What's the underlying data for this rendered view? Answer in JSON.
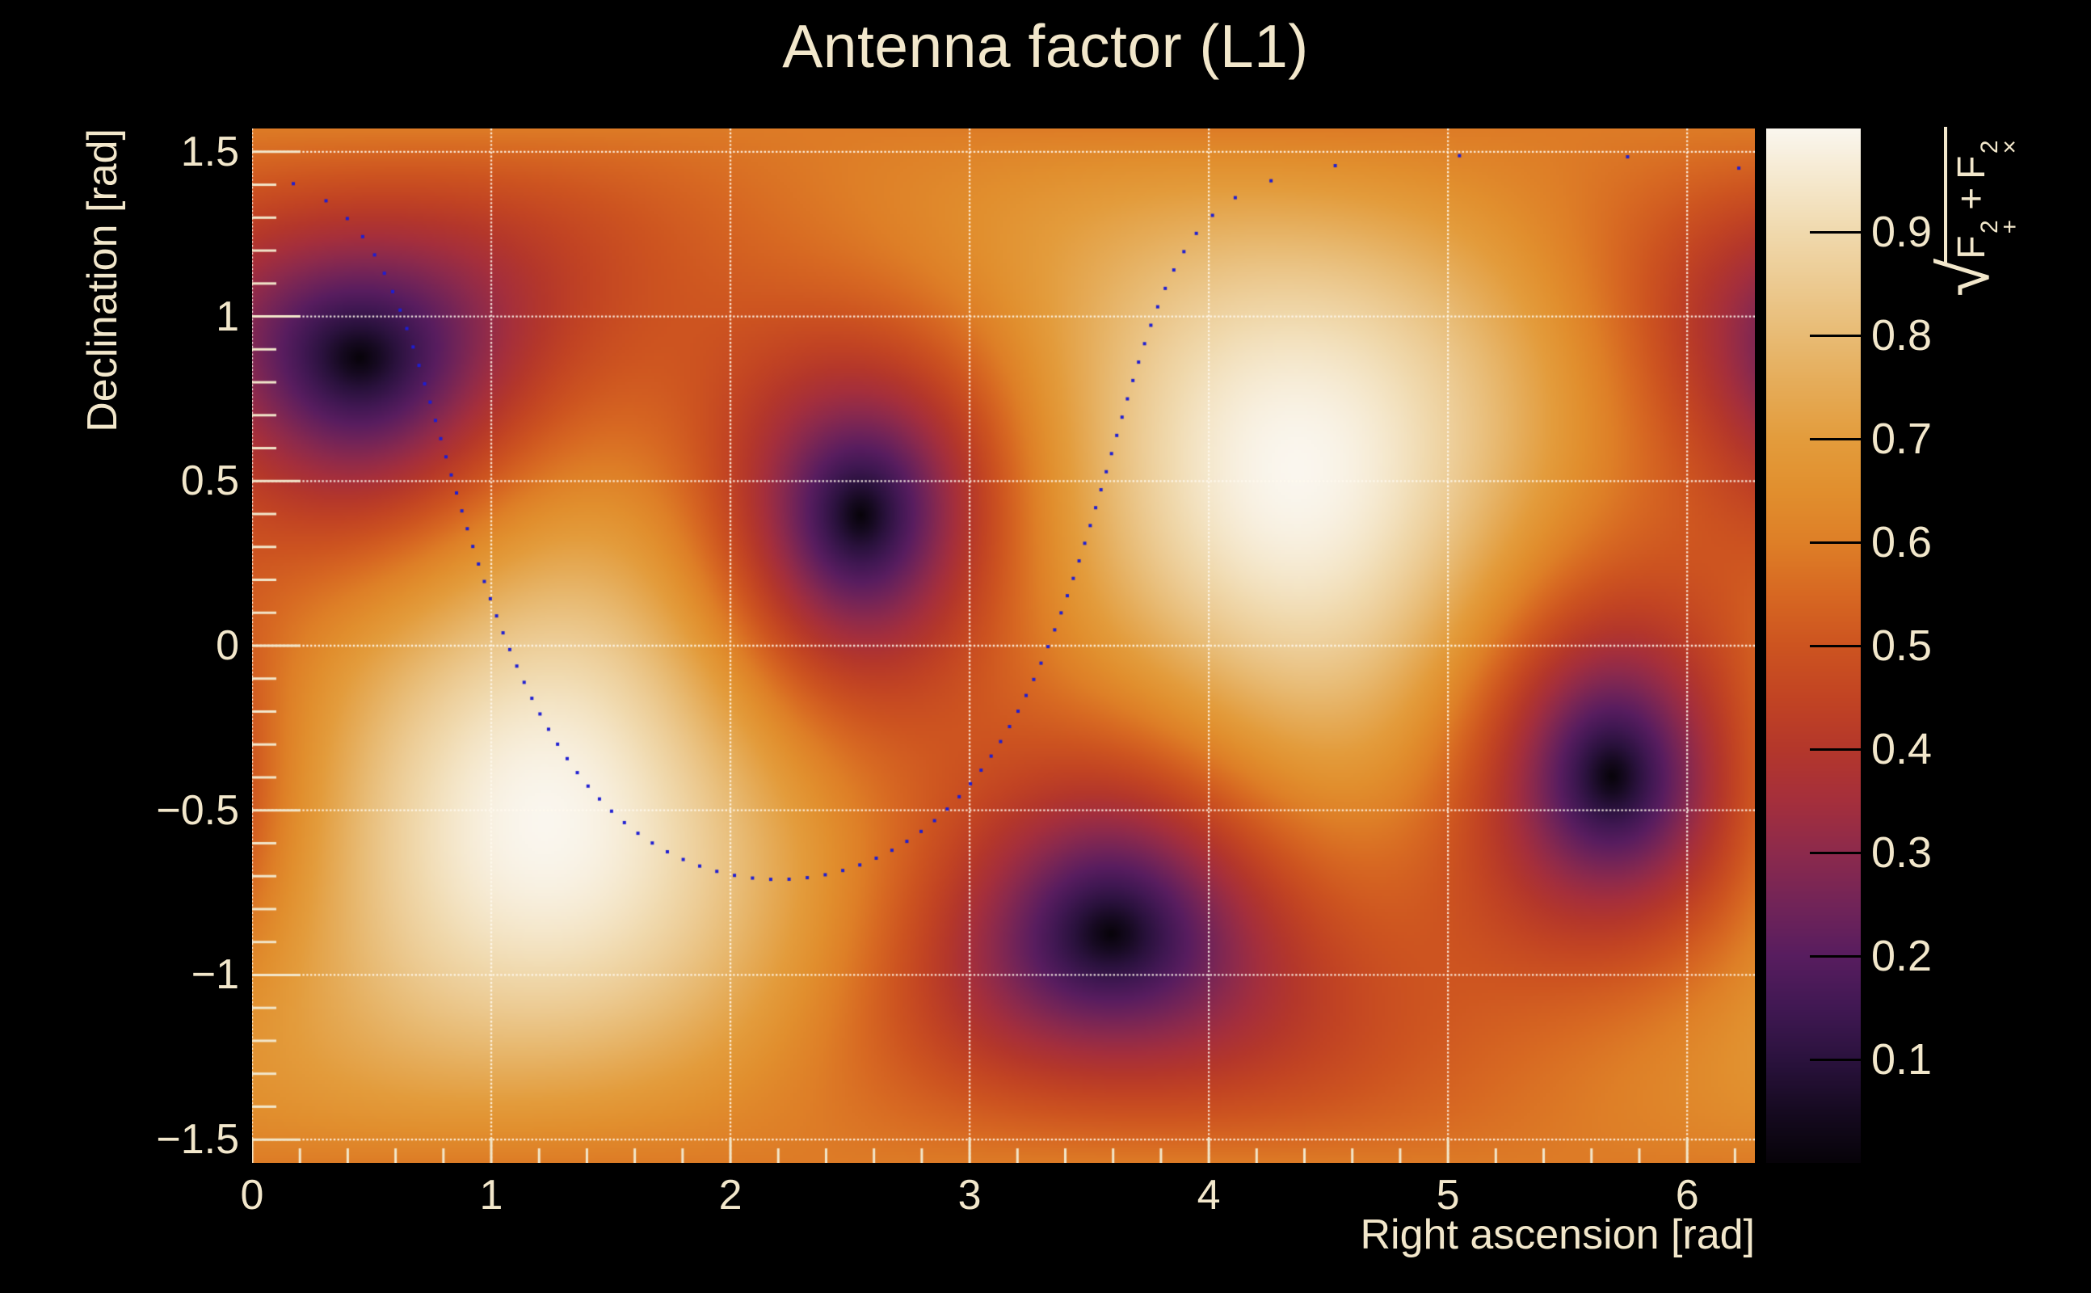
{
  "title": "Antenna factor (L1)",
  "style": {
    "background": "#000000",
    "text_color": "#f2e7cb",
    "grid_color": "rgba(255,249,238,0.9)",
    "tick_color": "#f2e7cb",
    "dot_color": "#1e1ed2",
    "colorbar_tick_color": "#000000"
  },
  "axes": {
    "x": {
      "title": "Right ascension [rad]",
      "tick_values": [
        0,
        1,
        2,
        3,
        4,
        5,
        6
      ],
      "tick_labels": [
        "0",
        "1",
        "2",
        "3",
        "4",
        "5",
        "6"
      ],
      "minor_step": 0.2,
      "range_rad": [
        0,
        6.283185
      ]
    },
    "y": {
      "title": "Declination [rad]",
      "tick_values": [
        1.5,
        1,
        0.5,
        0,
        -0.5,
        -1,
        -1.5
      ],
      "tick_labels": [
        "1.5",
        "1",
        "0.5",
        "0",
        "−0.5",
        "−1",
        "−1.5"
      ],
      "minor_step": 0.1,
      "range_rad": [
        -1.570796,
        1.570796
      ]
    },
    "z": {
      "tick_values": [
        0.9,
        0.8,
        0.7,
        0.6,
        0.5,
        0.4,
        0.3,
        0.2,
        0.1
      ],
      "tick_labels": [
        "0.9",
        "0.8",
        "0.7",
        "0.6",
        "0.5",
        "0.4",
        "0.3",
        "0.2",
        "0.1"
      ],
      "range": [
        0,
        1
      ]
    }
  },
  "colorbar": {
    "title_parts": {
      "radical": "√",
      "term1": {
        "base": "F",
        "sup": "2",
        "sub": "+"
      },
      "operator": "+",
      "term2": {
        "base": "F",
        "sup": "2",
        "sub": "×"
      }
    }
  },
  "chart_data": {
    "type": "heatmap",
    "title": "Antenna factor (L1)",
    "xlabel": "Right ascension [rad]",
    "ylabel": "Declination [rad]",
    "zlabel": "sqrt(F_+^2 + F_x^2)",
    "x_range_rad": [
      0,
      6.283185
    ],
    "y_range_rad": [
      -1.570796,
      1.570796
    ],
    "z_range": [
      0,
      1
    ],
    "grid": "dotted, at every major tick",
    "legend_position": "right colorbar",
    "antenna_pattern": {
      "detector": "L1",
      "formula": "value = sqrt(0.25*(1+cos^2(theta))^2*cos^2(2*phi) + cos^2(theta)*sin^2(2*phi)) in detector frame",
      "nulls_radec": [
        [
          0.44,
          0.87
        ],
        [
          2.55,
          0.39
        ],
        [
          3.58,
          -0.87
        ],
        [
          5.69,
          -0.39
        ]
      ],
      "maxima_radec": [
        [
          4.37,
          0.53
        ],
        [
          1.23,
          -0.53
        ]
      ],
      "max_value": 1.0
    },
    "colormap_stops": [
      [
        0.0,
        "#070309"
      ],
      [
        0.05,
        "#160a21"
      ],
      [
        0.1,
        "#2b123e"
      ],
      [
        0.15,
        "#411853"
      ],
      [
        0.2,
        "#581d5f"
      ],
      [
        0.25,
        "#722458"
      ],
      [
        0.3,
        "#8d2a4c"
      ],
      [
        0.35,
        "#a52f3c"
      ],
      [
        0.4,
        "#b4372b"
      ],
      [
        0.45,
        "#c24423"
      ],
      [
        0.5,
        "#cd5420"
      ],
      [
        0.55,
        "#d76822"
      ],
      [
        0.6,
        "#de7f27"
      ],
      [
        0.65,
        "#e18f2e"
      ],
      [
        0.7,
        "#e39c3c"
      ],
      [
        0.75,
        "#e5ab57"
      ],
      [
        0.8,
        "#e8bb74"
      ],
      [
        0.85,
        "#ecca91"
      ],
      [
        0.9,
        "#f0d9ad"
      ],
      [
        0.95,
        "#f5e8cd"
      ],
      [
        1.0,
        "#faf6ee"
      ]
    ],
    "overlay_ring": {
      "description": "dotted small circle on the sky",
      "center_ra_rad": 2.2,
      "center_dec_rad": 0.47,
      "angular_radius_rad": 1.18,
      "n_points": 100,
      "marker": "square",
      "marker_size_px": 4,
      "color": "#1e1ed2"
    }
  }
}
